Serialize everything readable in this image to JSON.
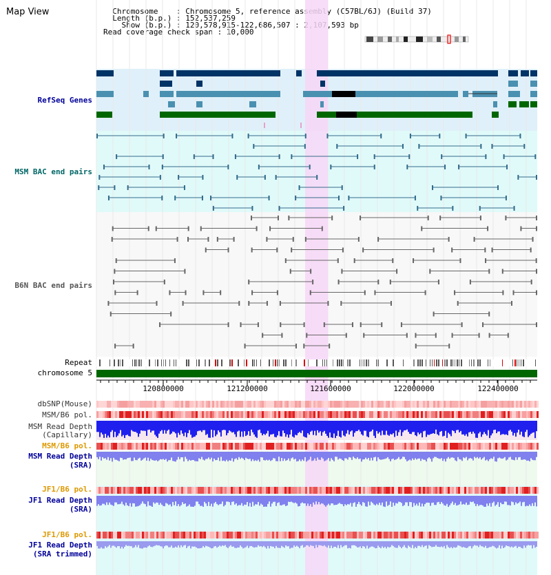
{
  "header": {
    "title": "Map View",
    "info_lines": [
      "  Chromosome    : Chromosome 5, reference assembly (C57BL/6J) (Build 37)",
      "  Length (b.p.) : 152,537,259",
      "    Show (b.p.) : 120,578,915-122,686,507 : 2,107,593 bp",
      "Read coverage check span : 10,000"
    ]
  },
  "tracks": {
    "refseq": "RefSeq Genes",
    "msm_bac": "MSM BAC end pairs",
    "b6n_bac": "B6N BAC end pairs",
    "repeat": "Repeat",
    "chromosome": "chromosome 5",
    "dbsnp": "dbSNP(Mouse)",
    "msm_b6_pol": "MSM/B6 pol.",
    "msm_depth_cap_1": "MSM Read Depth",
    "msm_depth_cap_2": "(Capillary)",
    "msm_b6_pol_2": "MSM/B6 pol.",
    "msm_depth_sra_1": "MSM Read Depth",
    "msm_depth_sra_2": "(SRA)",
    "jf1_b6_pol": "JF1/B6 pol.",
    "jf1_depth_sra_1": "JF1 Read Depth",
    "jf1_depth_sra_2": "(SRA)",
    "jf1_b6_pol_2": "JF1/B6 pol.",
    "jf1_depth_trim_1": "JF1 Read Depth",
    "jf1_depth_trim_2": "(SRA trimmed)"
  },
  "ruler": {
    "ticks": [
      "120800000",
      "121200000",
      "121600000",
      "122000000",
      "122400000"
    ]
  },
  "colors": {
    "refseq_bg": "#dff0fa",
    "msm_bg": "#e0fafa",
    "b6n_bg": "#f8f8f8",
    "highlight": "#f7d7f7",
    "gene_dark": "#003366",
    "gene_mid": "#4a90b0",
    "gene_green": "#006600",
    "msm_pair": "#336b8a",
    "b6n_pair": "#666666",
    "chrom_bar": "#006600",
    "depth_blue": "#2020ee",
    "depth_light": "#8080ee",
    "label_blue": "#000099",
    "label_teal": "#006666",
    "label_orange": "#dd9900"
  }
}
